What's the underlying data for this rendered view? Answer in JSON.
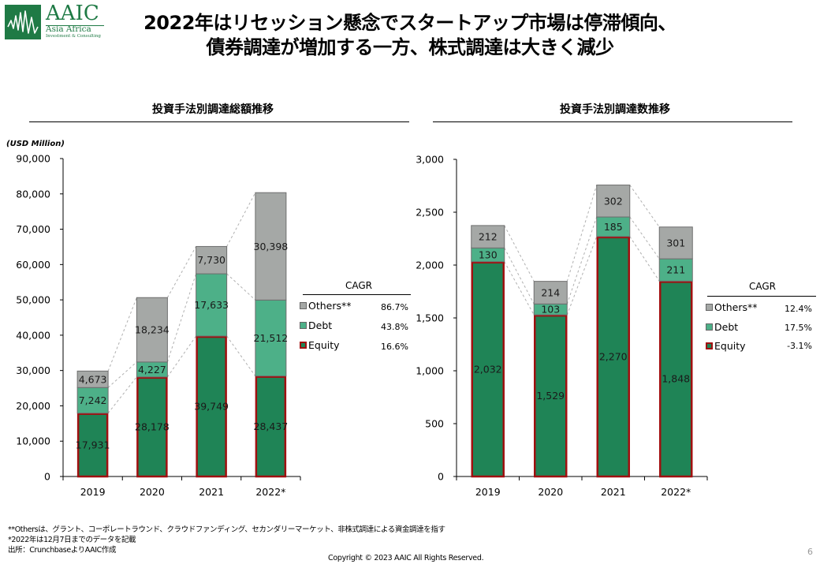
{
  "logo": {
    "name": "AAIC",
    "subtitle": "Asia Africa",
    "subtitle2": "Investment & Consulting"
  },
  "title": {
    "line1": "2022年はリセッション懸念でスタートアップ市場は停滞傾向、",
    "line2": "債券調達が増加する一方、株式調達は大きく減少"
  },
  "colors": {
    "others": "#A5A8A6",
    "debt": "#4DB088",
    "equity": "#1F8456",
    "equity_border": "#A01010",
    "connector": "#B0B0B0"
  },
  "chart_data": [
    {
      "type": "bar",
      "stacked": true,
      "title": "投資手法別調達総額推移",
      "ylabel": "(USD Million)",
      "xlabel": "",
      "categories": [
        "2019",
        "2020",
        "2021",
        "2022*"
      ],
      "ylim": [
        0,
        90000
      ],
      "yticks": [
        0,
        10000,
        20000,
        30000,
        40000,
        50000,
        60000,
        70000,
        80000,
        90000
      ],
      "ytick_labels": [
        "0",
        "10,000",
        "20,000",
        "30,000",
        "40,000",
        "50,000",
        "60,000",
        "70,000",
        "80,000",
        "90,000"
      ],
      "grid": false,
      "series": [
        {
          "name": "Equity",
          "key": "equity",
          "values": [
            17931,
            28178,
            39749,
            28437
          ],
          "labels": [
            "17,931",
            "28,178",
            "39,749",
            "28,437"
          ]
        },
        {
          "name": "Debt",
          "key": "debt",
          "values": [
            7242,
            4227,
            17633,
            21512
          ],
          "labels": [
            "7,242",
            "4,227",
            "17,633",
            "21,512"
          ]
        },
        {
          "name": "Others**",
          "key": "others",
          "values": [
            4673,
            18234,
            7730,
            30398
          ],
          "labels": [
            "4,673",
            "18,234",
            "7,730",
            "30,398"
          ]
        }
      ],
      "legend": {
        "placement": "right",
        "header": "CAGR",
        "items": [
          {
            "name": "Others**",
            "key": "others",
            "cagr": "86.7%"
          },
          {
            "name": "Debt",
            "key": "debt",
            "cagr": "43.8%"
          },
          {
            "name": "Equity",
            "key": "equity",
            "cagr": "16.6%"
          }
        ]
      }
    },
    {
      "type": "bar",
      "stacked": true,
      "title": "投資手法別調達数推移",
      "ylabel": "",
      "xlabel": "",
      "categories": [
        "2019",
        "2020",
        "2021",
        "2022*"
      ],
      "ylim": [
        0,
        3000
      ],
      "yticks": [
        0,
        500,
        1000,
        1500,
        2000,
        2500,
        3000
      ],
      "ytick_labels": [
        "0",
        "500",
        "1,000",
        "1,500",
        "2,000",
        "2,500",
        "3,000"
      ],
      "grid": false,
      "series": [
        {
          "name": "Equity",
          "key": "equity",
          "values": [
            2032,
            1529,
            2270,
            1848
          ],
          "labels": [
            "2,032",
            "1,529",
            "2,270",
            "1,848"
          ]
        },
        {
          "name": "Debt",
          "key": "debt",
          "values": [
            130,
            103,
            185,
            211
          ],
          "labels": [
            "130",
            "103",
            "185",
            "211"
          ]
        },
        {
          "name": "Others**",
          "key": "others",
          "values": [
            212,
            214,
            302,
            301
          ],
          "labels": [
            "212",
            "214",
            "302",
            "301"
          ]
        }
      ],
      "legend": {
        "placement": "right",
        "header": "CAGR",
        "items": [
          {
            "name": "Others**",
            "key": "others",
            "cagr": "12.4%"
          },
          {
            "name": "Debt",
            "key": "debt",
            "cagr": "17.5%"
          },
          {
            "name": "Equity",
            "key": "equity",
            "cagr": "-3.1%"
          }
        ]
      }
    }
  ],
  "footnotes": {
    "line1": "**Othersは、グラント、コーポレートラウンド、クラウドファンディング、セカンダリーマーケット、非株式調達による資金調達を指す",
    "line2": "*2022年は12月7日までのデータを記載",
    "line3": "出所：CrunchbaseよりAAIC作成"
  },
  "copyright": "Copyright © 2023 AAIC All Rights Reserved.",
  "page_number": "6"
}
